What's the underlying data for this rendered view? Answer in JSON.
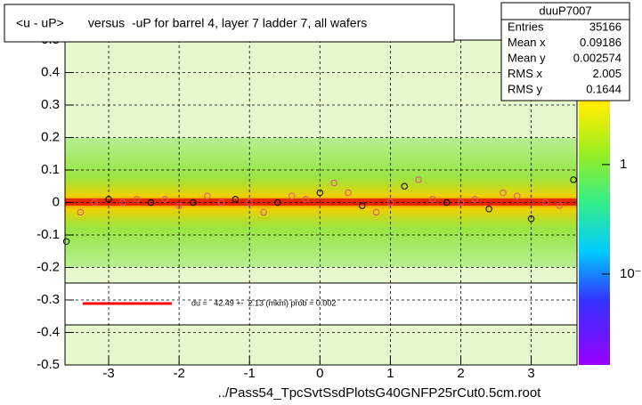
{
  "chart_data": {
    "type": "profile",
    "title": "<u - uP>       versus  -uP for barrel 4, layer 7 ladder 7, all wafers",
    "x_label": "../Pass54_TpcSvtSsdPlotsG40GNFP25rCut0.5cm.root",
    "xlim": [
      -3.62,
      3.65
    ],
    "xticks": [
      -3,
      -2,
      -1,
      0,
      1,
      2,
      3
    ],
    "ylim": [
      -0.5,
      0.5
    ],
    "yticks": [
      -0.5,
      -0.4,
      -0.3,
      -0.2,
      -0.1,
      0,
      0.1,
      0.2,
      0.3,
      0.4,
      0.5
    ],
    "grid": true,
    "zlog": true,
    "zlim": [
      0.0148,
      13.7
    ],
    "zticks": [
      1,
      {
        "value": 0.1,
        "label": "10⁻¹"
      }
    ],
    "series": [
      {
        "color": "#e0507a",
        "x": [
          -3.6,
          -3.4,
          -3.2,
          -3.0,
          -2.8,
          -2.6,
          -2.4,
          -2.2,
          -2.0,
          -1.8,
          -1.6,
          -1.4,
          -1.2,
          -1.0,
          -0.8,
          -0.6,
          -0.4,
          -0.2,
          0,
          0.2,
          0.4,
          0.6,
          0.8,
          1.0,
          1.2,
          1.4,
          1.6,
          1.8,
          2.0,
          2.2,
          2.4,
          2.6,
          2.8,
          3.0,
          3.2,
          3.4,
          3.6
        ],
        "values": [
          -0.12,
          -0.03,
          0.0,
          0.01,
          0.0,
          0.01,
          0.0,
          0.01,
          -0.01,
          0.0,
          0.02,
          0.0,
          0.01,
          0.0,
          -0.03,
          0.0,
          0.02,
          0.01,
          0.03,
          0.06,
          0.03,
          -0.01,
          -0.03,
          0.0,
          0.05,
          0.07,
          0.01,
          0.0,
          0.0,
          0.01,
          -0.02,
          0.03,
          0.02,
          -0.05,
          0.0,
          -0.01,
          0.07
        ]
      }
    ],
    "legend": {
      "label": "du =   42.49 +-  2.13 (mkm) prob = 0.002",
      "color": "#ff0000"
    },
    "stats": {
      "title": "duuP7007",
      "rows": [
        [
          "Entries",
          35166
        ],
        [
          "Mean x",
          0.09186
        ],
        [
          "Mean y",
          0.002574
        ],
        [
          "RMS x",
          2.005
        ],
        [
          "RMS y",
          0.1644
        ]
      ]
    }
  }
}
